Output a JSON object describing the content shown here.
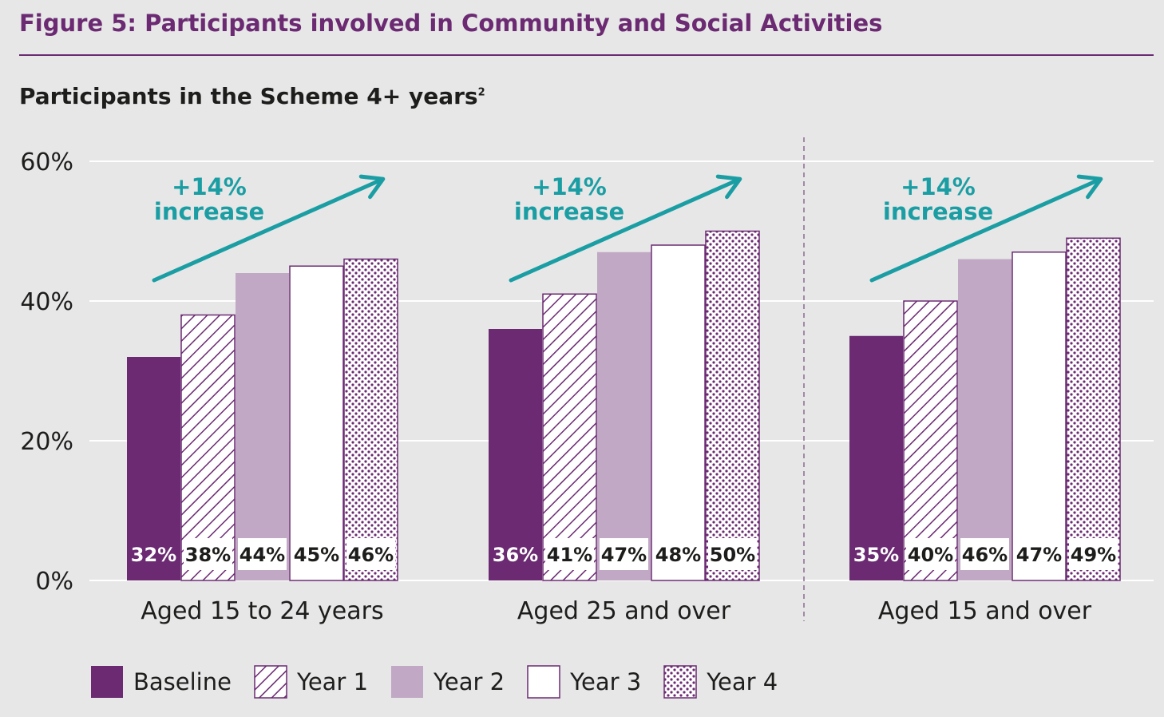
{
  "figure_title": "Figure 5: Participants involved in Community and Social Activities",
  "subtitle": "Participants in the Scheme 4+ years",
  "subtitle_superscript": "2",
  "colors": {
    "purple": "#6b2a72",
    "lilac": "#c1a8c4",
    "teal": "#1b9ea3",
    "background": "#e7e7e8"
  },
  "chart_data": {
    "type": "bar",
    "categories": [
      "Aged 15 to 24 years",
      "Aged 25 and over",
      "Aged 15 and over"
    ],
    "series": [
      {
        "name": "Baseline",
        "values": [
          32,
          36,
          35
        ],
        "labels": [
          "32%",
          "36%",
          "35%"
        ],
        "fill": "solid-purple"
      },
      {
        "name": "Year 1",
        "values": [
          38,
          41,
          40
        ],
        "labels": [
          "38%",
          "41%",
          "40%"
        ],
        "fill": "diagonal-hatch"
      },
      {
        "name": "Year 2",
        "values": [
          44,
          47,
          46
        ],
        "labels": [
          "44%",
          "47%",
          "46%"
        ],
        "fill": "solid-lilac"
      },
      {
        "name": "Year 3",
        "values": [
          45,
          48,
          47
        ],
        "labels": [
          "45%",
          "48%",
          "47%"
        ],
        "fill": "white"
      },
      {
        "name": "Year 4",
        "values": [
          46,
          50,
          49
        ],
        "labels": [
          "46%",
          "50%",
          "49%"
        ],
        "fill": "dotted"
      }
    ],
    "yticks": [
      "0%",
      "20%",
      "40%",
      "60%"
    ],
    "ytick_values": [
      0,
      20,
      40,
      60
    ],
    "ylim": [
      0,
      60
    ],
    "grid": true,
    "annotations": [
      {
        "line1": "+14%",
        "line2": "increase"
      },
      {
        "line1": "+14%",
        "line2": "increase"
      },
      {
        "line1": "+14%",
        "line2": "increase"
      }
    ],
    "legend_position": "bottom-left"
  }
}
